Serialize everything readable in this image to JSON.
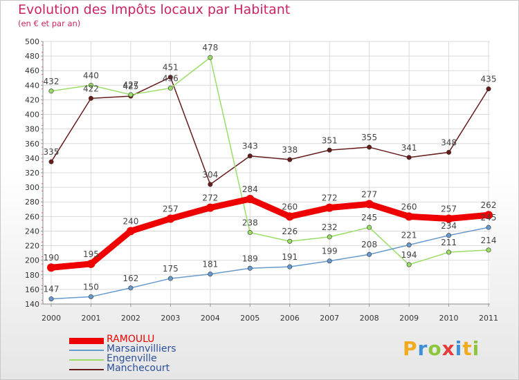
{
  "title": "Evolution des Impôts locaux par Habitant",
  "subtitle": "(en € et par an)",
  "colors": {
    "title": "#cc2266",
    "ramoulu": "#ee0000",
    "marsainvilliers": "#6699cc",
    "engenville": "#99dd66",
    "manchecourt": "#661a1a"
  },
  "logo": {
    "letters": [
      "P",
      "r",
      "o",
      "x",
      "i",
      "t",
      "i"
    ],
    "colors": [
      "#f0ab1e",
      "#3d8fd6",
      "#8cc63f",
      "#e23c3c",
      "#3d8fd6",
      "#f0ab1e",
      "#8cc63f"
    ]
  },
  "chart_data": {
    "type": "line",
    "title": "Evolution des Impôts locaux par Habitant",
    "subtitle": "(en € et par an)",
    "xlabel": "",
    "ylabel": "",
    "x": [
      "2000",
      "2001",
      "2002",
      "2003",
      "2004",
      "2005",
      "2006",
      "2007",
      "2008",
      "2009",
      "2010",
      "2011"
    ],
    "ylim": [
      140,
      500
    ],
    "yticks": [
      "140",
      "160",
      "180",
      "200",
      "220",
      "240",
      "260",
      "280",
      "300",
      "320",
      "340",
      "360",
      "380",
      "400",
      "420",
      "440",
      "460",
      "480",
      "500"
    ],
    "grid": true,
    "legend_position": "bottom-left",
    "series": [
      {
        "name": "Manchecourt",
        "key": "manchecourt",
        "values": [
          335,
          422,
          425,
          451,
          304,
          343,
          338,
          351,
          355,
          341,
          348,
          435
        ],
        "labels": [
          "335",
          "422",
          "425",
          "451",
          "304",
          "343",
          "338",
          "351",
          "355",
          "341",
          "348",
          "435"
        ]
      },
      {
        "name": "Engenville",
        "key": "engenville",
        "values": [
          432,
          440,
          427,
          436,
          478,
          238,
          226,
          232,
          245,
          194,
          211,
          214
        ],
        "labels": [
          "432",
          "440",
          "427",
          "436",
          "478",
          "238",
          "226",
          "232",
          "245",
          "194",
          "211",
          "214"
        ]
      },
      {
        "name": "Marsainvilliers",
        "key": "marsainvilliers",
        "values": [
          147,
          150,
          162,
          175,
          181,
          189,
          191,
          199,
          208,
          221,
          234,
          245
        ],
        "labels": [
          "147",
          "150",
          "162",
          "175",
          "181",
          "189",
          "191",
          "199",
          "208",
          "221",
          "234",
          "245"
        ]
      },
      {
        "name": "RAMOULU",
        "key": "ramoulu",
        "values": [
          190,
          195,
          240,
          257,
          272,
          284,
          260,
          272,
          277,
          260,
          257,
          262
        ],
        "labels": [
          "190",
          "195",
          "240",
          "257",
          "272",
          "284",
          "260",
          "272",
          "277",
          "260",
          "257",
          "262"
        ]
      }
    ],
    "legend": [
      "RAMOULU",
      "Marsainvilliers",
      "Engenville",
      "Manchecourt"
    ]
  }
}
